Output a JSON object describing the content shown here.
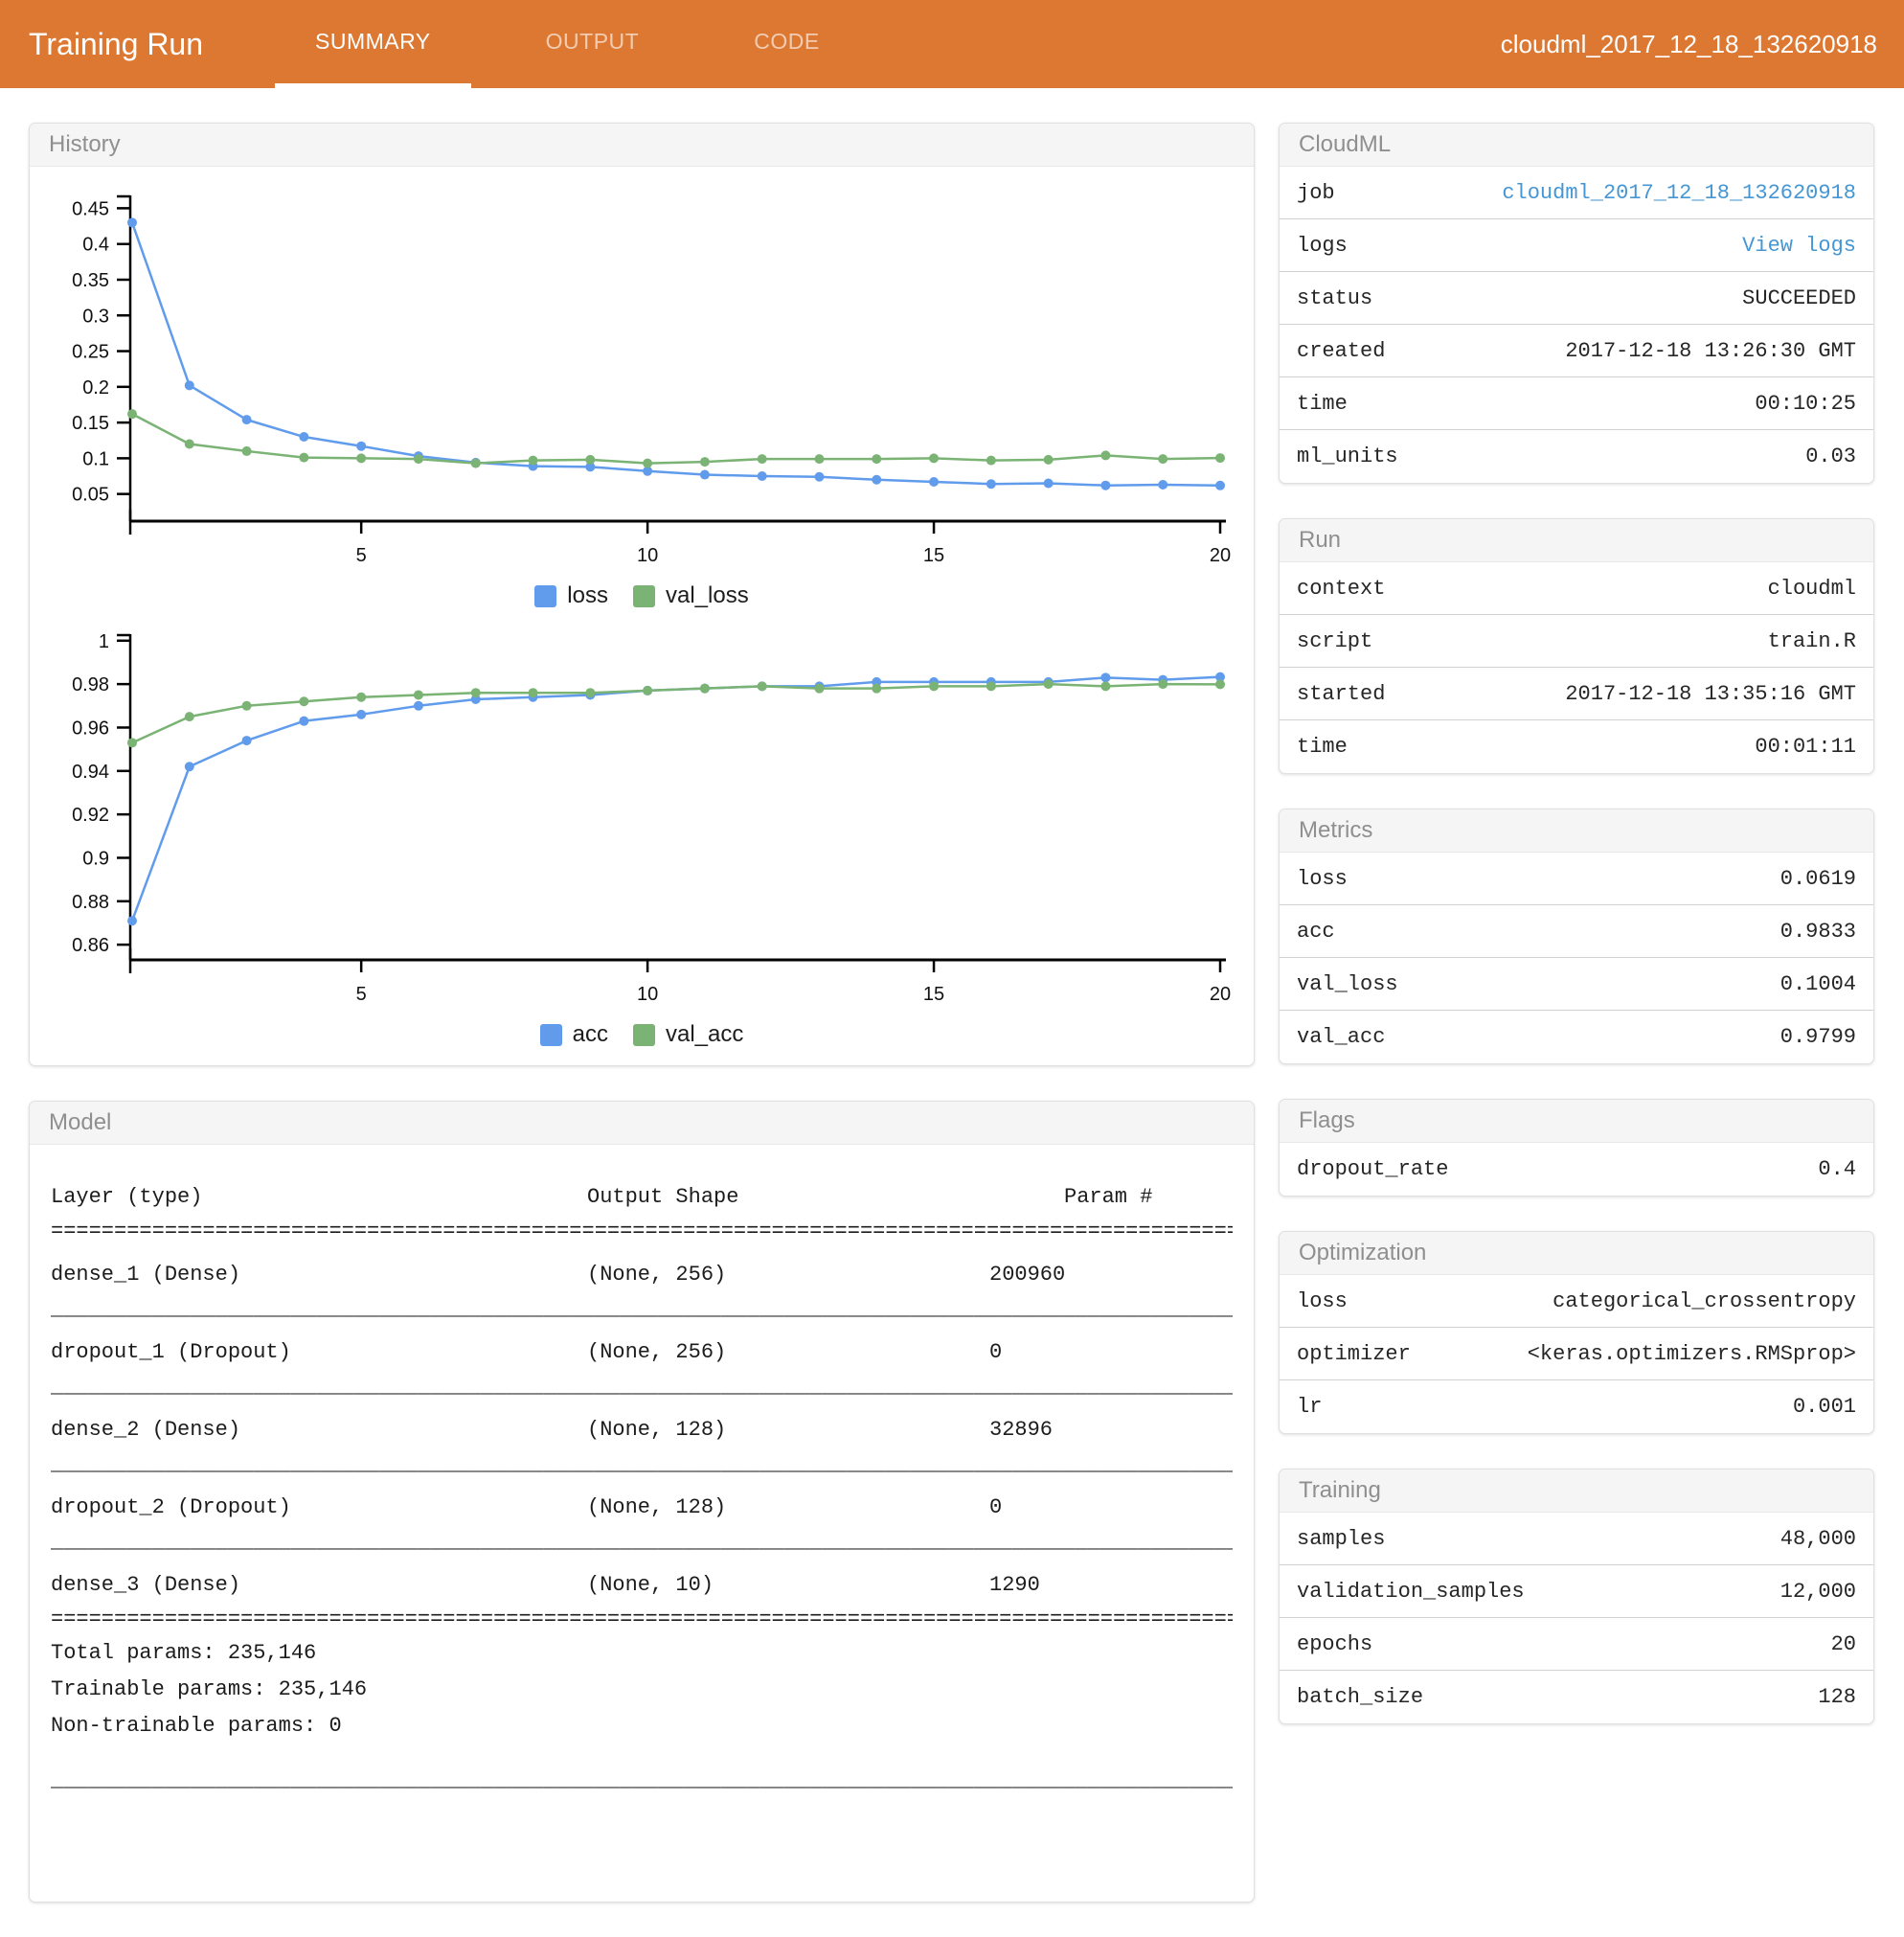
{
  "header": {
    "title": "Training Run",
    "tabs": [
      {
        "label": "SUMMARY",
        "active": true
      },
      {
        "label": "OUTPUT",
        "active": false
      },
      {
        "label": "CODE",
        "active": false
      }
    ],
    "run_id": "cloudml_2017_12_18_132620918"
  },
  "colors": {
    "header_orange": "#DD7832",
    "link_blue": "#4596D3",
    "series_blue": "#619CEC",
    "series_green": "#7AB374",
    "panel_header_bg": "#F5F5F5"
  },
  "history": {
    "title": "History"
  },
  "chart_data": [
    {
      "type": "line",
      "name": "loss-chart",
      "title": "",
      "xlabel": "",
      "ylabel": "",
      "grid": false,
      "legend_position": "bottom",
      "x": [
        1,
        2,
        3,
        4,
        5,
        6,
        7,
        8,
        9,
        10,
        11,
        12,
        13,
        14,
        15,
        16,
        17,
        18,
        19,
        20
      ],
      "xlim": [
        1,
        20
      ],
      "xticks": [
        5,
        10,
        15,
        20
      ],
      "ylim": [
        0.012,
        0.468
      ],
      "yticks": [
        0.45,
        0.4,
        0.35,
        0.3,
        0.25,
        0.2,
        0.15,
        0.1,
        0.05
      ],
      "ytick_labels": [
        "0.45",
        "0.4",
        "0.35",
        "0.3",
        "0.25",
        "0.2",
        "0.15",
        "0.1",
        "0.05"
      ],
      "series": [
        {
          "name": "loss",
          "color": "#619CEC",
          "values": [
            0.43,
            0.202,
            0.154,
            0.13,
            0.117,
            0.103,
            0.094,
            0.089,
            0.088,
            0.082,
            0.077,
            0.075,
            0.074,
            0.07,
            0.067,
            0.064,
            0.065,
            0.062,
            0.063,
            0.0619
          ]
        },
        {
          "name": "val_loss",
          "color": "#7AB374",
          "values": [
            0.162,
            0.12,
            0.11,
            0.101,
            0.1,
            0.099,
            0.093,
            0.097,
            0.098,
            0.093,
            0.095,
            0.099,
            0.099,
            0.099,
            0.1,
            0.097,
            0.098,
            0.104,
            0.099,
            0.1004
          ]
        }
      ]
    },
    {
      "type": "line",
      "name": "accuracy-chart",
      "title": "",
      "xlabel": "",
      "ylabel": "",
      "grid": false,
      "legend_position": "bottom",
      "x": [
        1,
        2,
        3,
        4,
        5,
        6,
        7,
        8,
        9,
        10,
        11,
        12,
        13,
        14,
        15,
        16,
        17,
        18,
        19,
        20
      ],
      "xlim": [
        1,
        20
      ],
      "xticks": [
        5,
        10,
        15,
        20
      ],
      "ylim": [
        0.853,
        1.003
      ],
      "yticks": [
        1,
        0.98,
        0.96,
        0.94,
        0.92,
        0.9,
        0.88,
        0.86
      ],
      "ytick_labels": [
        "1",
        "0.98",
        "0.96",
        "0.94",
        "0.92",
        "0.9",
        "0.88",
        "0.86"
      ],
      "series": [
        {
          "name": "acc",
          "color": "#619CEC",
          "values": [
            0.871,
            0.942,
            0.954,
            0.963,
            0.966,
            0.97,
            0.973,
            0.974,
            0.975,
            0.977,
            0.978,
            0.979,
            0.979,
            0.981,
            0.981,
            0.981,
            0.981,
            0.983,
            0.982,
            0.9833
          ]
        },
        {
          "name": "val_acc",
          "color": "#7AB374",
          "values": [
            0.953,
            0.965,
            0.97,
            0.972,
            0.974,
            0.975,
            0.976,
            0.976,
            0.976,
            0.977,
            0.978,
            0.979,
            0.978,
            0.978,
            0.979,
            0.979,
            0.98,
            0.979,
            0.98,
            0.9799
          ]
        }
      ]
    }
  ],
  "model": {
    "title": "Model",
    "columns": [
      "Layer (type)",
      "Output Shape",
      "Param #"
    ],
    "layers": [
      {
        "layer": "dense_1 (Dense)",
        "output_shape": "(None, 256)",
        "params": "200960"
      },
      {
        "layer": "dropout_1 (Dropout)",
        "output_shape": "(None, 256)",
        "params": "0"
      },
      {
        "layer": "dense_2 (Dense)",
        "output_shape": "(None, 128)",
        "params": "32896"
      },
      {
        "layer": "dropout_2 (Dropout)",
        "output_shape": "(None, 128)",
        "params": "0"
      },
      {
        "layer": "dense_3 (Dense)",
        "output_shape": "(None, 10)",
        "params": "1290"
      }
    ],
    "summary_lines": [
      "Total params: 235,146",
      "Trainable params: 235,146",
      "Non-trainable params: 0"
    ]
  },
  "panels": [
    {
      "title": "CloudML",
      "rows": [
        {
          "label": "job",
          "value": "cloudml_2017_12_18_132620918",
          "link": true,
          "name": "job-link"
        },
        {
          "label": "logs",
          "value": "View logs",
          "link": true,
          "name": "view-logs-link"
        },
        {
          "label": "status",
          "value": "SUCCEEDED"
        },
        {
          "label": "created",
          "value": "2017-12-18 13:26:30 GMT"
        },
        {
          "label": "time",
          "value": "00:10:25"
        },
        {
          "label": "ml_units",
          "value": "0.03"
        }
      ]
    },
    {
      "title": "Run",
      "rows": [
        {
          "label": "context",
          "value": "cloudml"
        },
        {
          "label": "script",
          "value": "train.R"
        },
        {
          "label": "started",
          "value": "2017-12-18 13:35:16 GMT"
        },
        {
          "label": "time",
          "value": "00:01:11"
        }
      ]
    },
    {
      "title": "Metrics",
      "rows": [
        {
          "label": "loss",
          "value": "0.0619"
        },
        {
          "label": "acc",
          "value": "0.9833"
        },
        {
          "label": "val_loss",
          "value": "0.1004"
        },
        {
          "label": "val_acc",
          "value": "0.9799"
        }
      ]
    },
    {
      "title": "Flags",
      "rows": [
        {
          "label": "dropout_rate",
          "value": "0.4"
        }
      ]
    },
    {
      "title": "Optimization",
      "rows": [
        {
          "label": "loss",
          "value": "categorical_crossentropy"
        },
        {
          "label": "optimizer",
          "value": "<keras.optimizers.RMSprop>"
        },
        {
          "label": "lr",
          "value": "0.001"
        }
      ]
    },
    {
      "title": "Training",
      "rows": [
        {
          "label": "samples",
          "value": "48,000"
        },
        {
          "label": "validation_samples",
          "value": "12,000"
        },
        {
          "label": "epochs",
          "value": "20"
        },
        {
          "label": "batch_size",
          "value": "128"
        }
      ]
    }
  ]
}
